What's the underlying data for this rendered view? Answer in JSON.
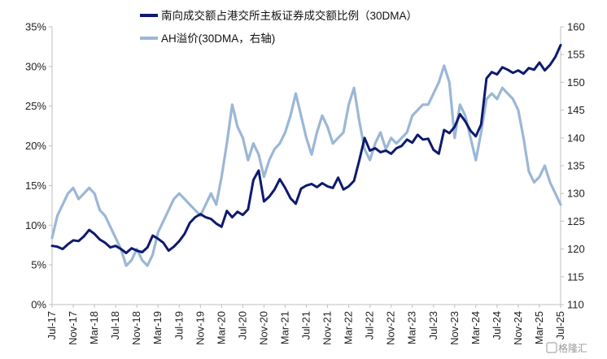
{
  "chart_data": {
    "type": "line",
    "title": "",
    "legend_placement": "top-center",
    "grid": false,
    "x_ticks": [
      "Jul-17",
      "Nov-17",
      "Mar-18",
      "Jul-18",
      "Nov-18",
      "Mar-19",
      "Jul-19",
      "Nov-19",
      "Mar-20",
      "Jul-20",
      "Nov-20",
      "Mar-21",
      "Jul-21",
      "Nov-21",
      "Mar-22",
      "Jul-22",
      "Nov-22",
      "Mar-23",
      "Jul-23",
      "Nov-23",
      "Mar-24",
      "Jul-24",
      "Nov-24",
      "Mar-25",
      "Jul-25"
    ],
    "y_left": {
      "ylim": [
        0,
        35
      ],
      "tick_labels": [
        "0%",
        "5%",
        "10%",
        "15%",
        "20%",
        "25%",
        "30%",
        "35%"
      ]
    },
    "y_right": {
      "ylim": [
        110,
        160
      ],
      "tick_labels": [
        "110",
        "115",
        "120",
        "125",
        "130",
        "135",
        "140",
        "145",
        "150",
        "155",
        "160"
      ]
    },
    "series": [
      {
        "name": "南向成交额占港交所主板证券成交额比例（30DMA）",
        "axis": "left",
        "color": "#0d1a6e",
        "x": [
          0,
          1,
          2,
          3,
          4,
          5,
          6,
          7,
          8,
          9,
          10,
          11,
          12,
          13,
          14,
          15,
          16,
          17,
          18,
          19,
          20,
          21,
          22,
          23,
          24,
          25,
          26,
          27,
          28,
          29,
          30,
          31,
          32,
          33,
          34,
          35,
          36,
          37,
          38,
          39,
          40,
          41,
          42,
          43,
          44,
          45,
          46,
          47,
          48,
          49,
          50,
          51,
          52,
          53,
          54,
          55,
          56,
          57,
          58,
          59,
          60,
          61,
          62,
          63,
          64,
          65,
          66,
          67,
          68,
          69,
          70,
          71,
          72,
          73,
          74,
          75,
          76,
          77,
          78,
          79,
          80,
          81,
          82,
          83,
          84,
          85,
          86,
          87,
          88,
          89,
          90,
          91,
          92,
          93,
          94,
          95,
          96
        ],
        "values": [
          7.4,
          7.3,
          7.0,
          7.6,
          8.1,
          8.0,
          8.6,
          9.4,
          8.9,
          8.2,
          7.8,
          7.2,
          7.4,
          7.0,
          6.5,
          7.1,
          6.8,
          6.6,
          7.2,
          8.7,
          8.3,
          7.8,
          6.8,
          7.3,
          8.0,
          8.9,
          10.3,
          11.0,
          11.4,
          11.0,
          10.8,
          10.2,
          9.8,
          11.8,
          11.0,
          11.7,
          11.3,
          12.0,
          15.7,
          16.9,
          13.0,
          13.6,
          14.5,
          15.8,
          14.7,
          13.4,
          12.7,
          14.6,
          15.0,
          15.2,
          14.8,
          15.3,
          14.9,
          14.7,
          16.0,
          14.5,
          14.9,
          15.6,
          18.2,
          21.0,
          19.4,
          19.7,
          19.2,
          19.4,
          19.0,
          19.7,
          20.0,
          20.8,
          20.4,
          21.4,
          20.8,
          20.9,
          19.5,
          19.0,
          22.0,
          21.6,
          22.4,
          24.0,
          23.1,
          21.9,
          21.2,
          22.7,
          28.5,
          29.3,
          29.0,
          29.9,
          29.6,
          29.2,
          29.5,
          29.1,
          29.8,
          29.6,
          30.5,
          29.5,
          30.2,
          31.2,
          32.7
        ]
      },
      {
        "name": "AH溢价(30DMA，右轴)",
        "axis": "right",
        "color": "#9bb7d6",
        "x": [
          0,
          1,
          2,
          3,
          4,
          5,
          6,
          7,
          8,
          9,
          10,
          11,
          12,
          13,
          14,
          15,
          16,
          17,
          18,
          19,
          20,
          21,
          22,
          23,
          24,
          25,
          26,
          27,
          28,
          29,
          30,
          31,
          32,
          33,
          34,
          35,
          36,
          37,
          38,
          39,
          40,
          41,
          42,
          43,
          44,
          45,
          46,
          47,
          48,
          49,
          50,
          51,
          52,
          53,
          54,
          55,
          56,
          57,
          58,
          59,
          60,
          61,
          62,
          63,
          64,
          65,
          66,
          67,
          68,
          69,
          70,
          71,
          72,
          73,
          74,
          75,
          76,
          77,
          78,
          79,
          80,
          81,
          82,
          83,
          84,
          85,
          86,
          87,
          88,
          89,
          90,
          91,
          92,
          93,
          94,
          95,
          96
        ],
        "values": [
          122,
          126,
          128,
          130,
          131,
          129,
          130,
          131,
          130,
          127,
          126,
          124,
          122,
          120,
          117,
          118,
          120,
          118,
          117,
          119,
          123,
          125,
          127,
          129,
          130,
          129,
          128,
          127,
          126,
          128,
          130,
          128,
          133,
          139,
          146,
          142,
          140,
          136,
          139,
          137,
          133,
          136,
          138,
          139,
          141,
          144,
          148,
          144,
          140,
          137,
          141,
          144,
          142,
          139,
          140,
          141,
          146,
          149,
          143,
          138,
          136,
          139,
          141,
          138,
          140,
          139,
          140,
          141,
          144,
          145,
          146,
          146,
          148,
          150,
          153,
          150,
          140,
          146,
          144,
          140,
          136,
          141,
          147,
          148,
          147,
          149,
          148,
          147,
          145,
          140,
          134,
          132,
          133,
          135,
          132,
          130,
          128
        ]
      }
    ]
  },
  "watermark": "格隆汇"
}
